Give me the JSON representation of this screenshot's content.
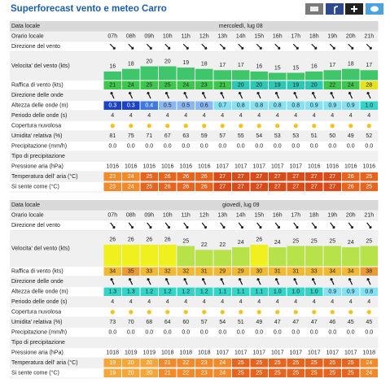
{
  "title": "Superforecast vento e meteo Carro",
  "days": [
    {
      "rows": {
        "date": {
          "label": "Data locale",
          "text": "mercoledì, lug 08"
        },
        "hours": {
          "label": "Orario locale",
          "values": [
            "07h",
            "08h",
            "09h",
            "10h",
            "11h",
            "12h",
            "13h",
            "14h",
            "15h",
            "16h",
            "17h",
            "18h",
            "19h",
            "20h",
            "21h"
          ]
        },
        "wind_dir": {
          "label": "Direzione del vento"
        },
        "wind_speed": {
          "label": "Velocita' del vento (kts)",
          "values": [
            16,
            18,
            20,
            20,
            19,
            18,
            17,
            17,
            16,
            15,
            15,
            16,
            17,
            18,
            17
          ]
        },
        "gust": {
          "label": "Raffica di vento (kts)",
          "values": [
            21,
            24,
            25,
            25,
            24,
            23,
            21,
            20,
            20,
            19,
            19,
            20,
            22,
            24,
            28
          ]
        },
        "wave_dir": {
          "label": "Direzione delle onde"
        },
        "wave_height": {
          "label": "Altezza delle onde (m)",
          "values": [
            "0.3",
            "0.3",
            "0.4",
            "0.5",
            "0.5",
            "0.6",
            "0.7",
            "0.8",
            "0.8",
            "0.8",
            "0.8",
            "0.9",
            "0.9",
            "0.9",
            "1.0"
          ]
        },
        "wave_period": {
          "label": "Periodo delle onde (s)",
          "values": [
            4,
            4,
            4,
            4,
            4,
            4,
            4,
            4,
            4,
            4,
            4,
            4,
            4,
            4,
            4
          ]
        },
        "cloud": {
          "label": "Copertura nuvolosa"
        },
        "humidity": {
          "label": "Umidita' relativa (%)",
          "values": [
            81,
            75,
            71,
            67,
            63,
            59,
            57,
            55,
            54,
            53,
            53,
            51,
            50,
            49,
            52
          ]
        },
        "precipitation": {
          "label": "Precipitazione (mm/h)",
          "values": [
            "0.0",
            "0.0",
            "0.0",
            "0.0",
            "0.0",
            "0.0",
            "0.0",
            "0.0",
            "0.0",
            "0.0",
            "0.0",
            "0.0",
            "0.0",
            "0.0",
            "0.0"
          ]
        },
        "precip_type": {
          "label": "Tipo di precipitazione"
        },
        "pressure": {
          "label": "Pressione aria (hPa)",
          "values": [
            1016,
            1016,
            1016,
            1016,
            1016,
            1016,
            1017,
            1017,
            1017,
            1017,
            1017,
            1016,
            1016,
            1016,
            1016
          ]
        },
        "temperature": {
          "label": "Temperatura dell' aria (°C)",
          "values": [
            23,
            24,
            25,
            26,
            26,
            26,
            27,
            27,
            27,
            27,
            27,
            27,
            27,
            26,
            25
          ]
        },
        "feels_like": {
          "label": "Si sente come (°C)",
          "values": [
            23,
            24,
            25,
            26,
            26,
            26,
            27,
            27,
            27,
            27,
            27,
            27,
            27,
            26,
            25
          ]
        }
      }
    },
    {
      "rows": {
        "date": {
          "label": "Data locale",
          "text": "giovedì, lug 09"
        },
        "hours": {
          "label": "Orario locale",
          "values": [
            "07h",
            "08h",
            "09h",
            "10h",
            "11h",
            "12h",
            "13h",
            "14h",
            "15h",
            "16h",
            "17h",
            "18h",
            "19h",
            "20h",
            "21h"
          ]
        },
        "wind_dir": {
          "label": "Direzione del vento"
        },
        "wind_speed": {
          "label": "Velocita' del vento (kts)",
          "values": [
            26,
            26,
            26,
            26,
            25,
            22,
            22,
            24,
            26,
            24,
            25,
            25,
            25,
            24,
            25
          ]
        },
        "gust": {
          "label": "Raffica di vento (kts)",
          "values": [
            34,
            35,
            33,
            32,
            32,
            31,
            29,
            29,
            30,
            31,
            31,
            33,
            34,
            34,
            38
          ]
        },
        "wave_dir": {
          "label": "Direzione delle onde"
        },
        "wave_height": {
          "label": "Altezza delle onde (m)",
          "values": [
            "1.3",
            "1.3",
            "1.2",
            "1.2",
            "1.2",
            "1.2",
            "1.1",
            "1.1",
            "1.1",
            "1.0",
            "1.0",
            "1.0",
            "0.9",
            "0.9",
            "0.8"
          ]
        },
        "wave_period": {
          "label": "Periodo delle onde (s)",
          "values": [
            4,
            4,
            4,
            4,
            4,
            4,
            4,
            4,
            4,
            4,
            4,
            4,
            4,
            4,
            4
          ]
        },
        "cloud": {
          "label": "Copertura nuvolosa"
        },
        "humidity": {
          "label": "Umidita' relativa (%)",
          "values": [
            73,
            70,
            68,
            64,
            60,
            57,
            54,
            51,
            49,
            47,
            47,
            47,
            46,
            45,
            45
          ]
        },
        "precipitation": {
          "label": "Precipitazione (mm/h)",
          "values": [
            "0.0",
            "0.0",
            "0.0",
            "0.0",
            "0.0",
            "0.0",
            "0.0",
            "0.0",
            "0.0",
            "0.0",
            "0.0",
            "0.0",
            "0.0",
            "0.0",
            "0.0"
          ]
        },
        "precip_type": {
          "label": "Tipo di precipitazione"
        },
        "pressure": {
          "label": "Pressione aria (hPa)",
          "values": [
            1018,
            1019,
            1019,
            1018,
            1018,
            1018,
            1017,
            1017,
            1017,
            1017,
            1017,
            1017,
            1017,
            1017,
            1018
          ]
        },
        "temperature": {
          "label": "Temperatura dell' aria (°C)",
          "values": [
            19,
            20,
            20,
            21,
            22,
            23,
            24,
            25,
            25,
            25,
            25,
            25,
            25,
            25,
            24
          ]
        },
        "feels_like": {
          "label": "Si sente come (°C)",
          "values": [
            19,
            20,
            20,
            21,
            22,
            23,
            24,
            25,
            25,
            25,
            25,
            25,
            25,
            25,
            24
          ]
        }
      }
    }
  ]
}
